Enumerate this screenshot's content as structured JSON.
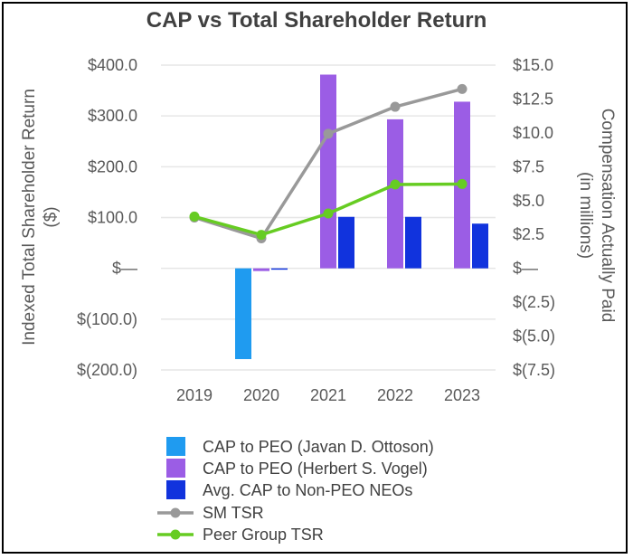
{
  "chart_data": {
    "type": "bar+line",
    "title": "CAP vs Total Shareholder Return",
    "categories": [
      "2019",
      "2020",
      "2021",
      "2022",
      "2023"
    ],
    "left_axis": {
      "label": "Indexed Total Shareholder Return ($)",
      "label_lines": [
        "Indexed Total Shareholder Return",
        "($)"
      ],
      "ylim": [
        -200,
        400
      ],
      "ticks": [
        400,
        300,
        200,
        100,
        0,
        -100,
        -200
      ],
      "tick_labels": [
        "$400.0",
        "$300.0",
        "$200.0",
        "$100.0",
        "$—",
        "$(100.0)",
        "$(200.0)"
      ]
    },
    "right_axis": {
      "label": "Compensation Actually Paid (in millions)",
      "label_lines": [
        "Compensation Actually Paid",
        "(in millions)"
      ],
      "ylim": [
        -7.5,
        15
      ],
      "ticks": [
        15,
        12.5,
        10,
        7.5,
        5,
        2.5,
        0,
        -2.5,
        -5,
        -7.5
      ],
      "tick_labels": [
        "$15.0",
        "$12.5",
        "$10.0",
        "$7.5",
        "$5.0",
        "$2.5",
        "$—",
        "$(2.5)",
        "$(5.0)",
        "$(7.5)"
      ]
    },
    "bar_series": [
      {
        "name": "CAP to PEO (Javan D. Ottoson)",
        "color": "#1f9bf0",
        "values": [
          null,
          -6.7,
          null,
          null,
          null
        ]
      },
      {
        "name": "CAP to PEO (Herbert S. Vogel)",
        "color": "#9b5de5",
        "values": [
          null,
          -0.2,
          14.3,
          11.0,
          12.3
        ]
      },
      {
        "name": "Avg. CAP to Non-PEO NEOs",
        "color": "#1133dd",
        "values": [
          null,
          -0.1,
          3.8,
          3.8,
          3.3
        ]
      }
    ],
    "line_series": [
      {
        "name": "SM TSR",
        "color": "#999999",
        "values": [
          100,
          59,
          265,
          318,
          353
        ]
      },
      {
        "name": "Peer Group TSR",
        "color": "#66cc22",
        "values": [
          102,
          66,
          108,
          165,
          166
        ]
      }
    ],
    "legend_position": "bottom"
  }
}
